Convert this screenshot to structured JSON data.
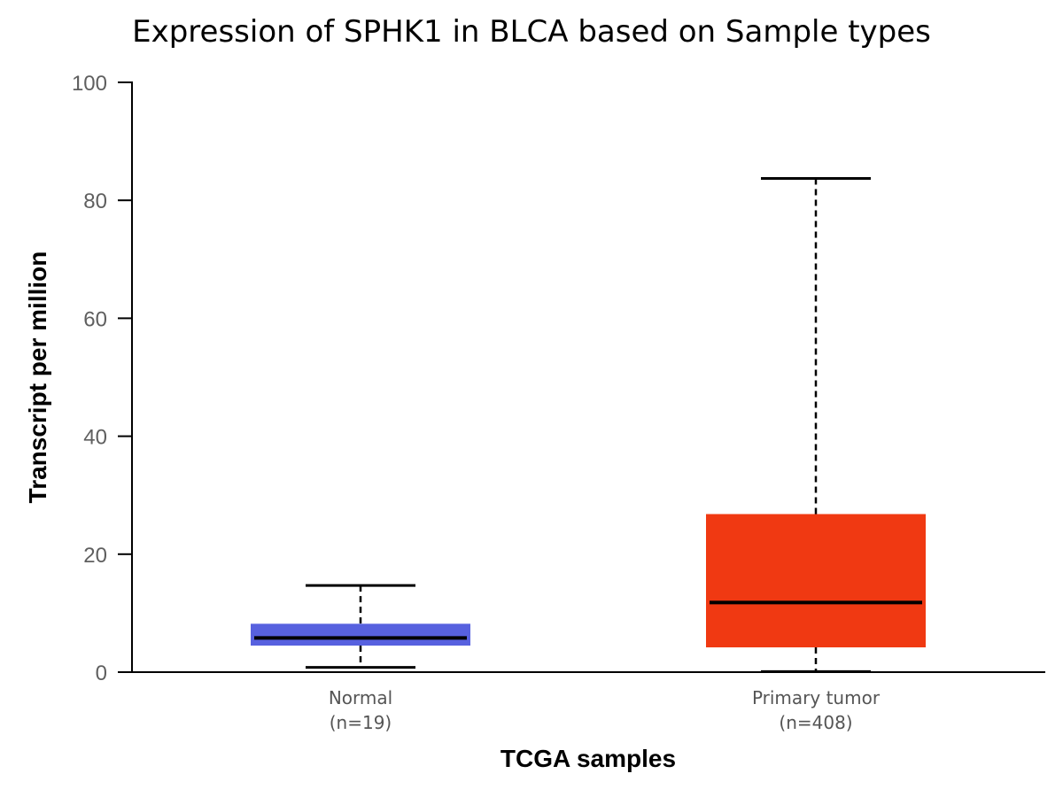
{
  "chart_data": {
    "type": "boxplot",
    "title": "Expression of SPHK1 in BLCA based on Sample types",
    "xlabel": "TCGA samples",
    "ylabel": "Transcript per million",
    "ylim": [
      0,
      100
    ],
    "yticks": [
      "0",
      "20",
      "40",
      "60",
      "80",
      "100"
    ],
    "grid": false,
    "categories": [
      {
        "name": "Normal",
        "n_label": "(n=19)"
      },
      {
        "name": "Primary tumor",
        "n_label": "(n=408)"
      }
    ],
    "boxes": [
      {
        "category": "Normal",
        "whisker_low": 0.8,
        "q1": 4.5,
        "median": 5.8,
        "q3": 8.2,
        "whisker_high": 14.7,
        "color": "#5761df"
      },
      {
        "category": "Primary tumor",
        "whisker_low": 0.1,
        "q1": 4.2,
        "median": 11.8,
        "q3": 26.8,
        "whisker_high": 83.7,
        "color": "#f03912"
      }
    ]
  }
}
